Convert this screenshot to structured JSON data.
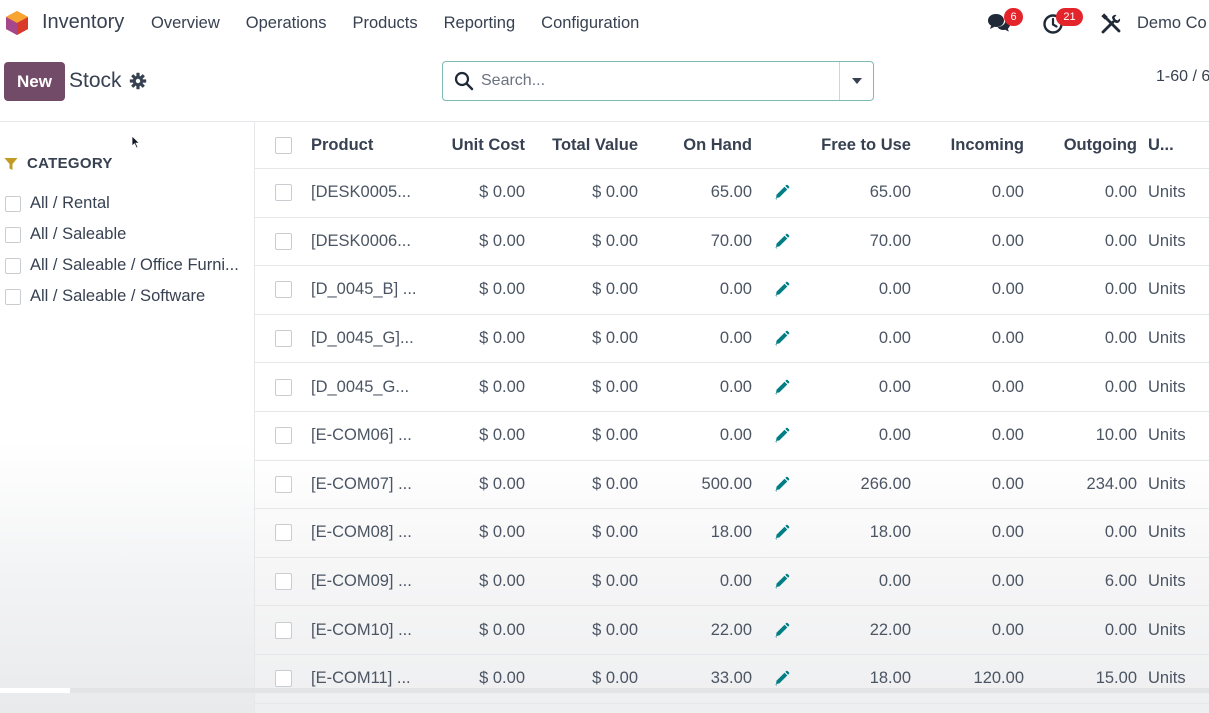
{
  "navbar": {
    "app_name": "Inventory",
    "menu": [
      "Overview",
      "Operations",
      "Products",
      "Reporting",
      "Configuration"
    ],
    "messages_count": "6",
    "activities_count": "21",
    "company": "Demo Co"
  },
  "control_panel": {
    "new_label": "New",
    "breadcrumb": "Stock",
    "search_placeholder": "Search...",
    "pager": "1-60 / 6"
  },
  "sidepanel": {
    "title": "CATEGORY",
    "items": [
      {
        "label": "All / Rental"
      },
      {
        "label": "All / Saleable"
      },
      {
        "label": "All / Saleable / Office Furni..."
      },
      {
        "label": "All / Saleable / Software"
      }
    ]
  },
  "table": {
    "headers": {
      "product": "Product",
      "unit_cost": "Unit Cost",
      "total_value": "Total Value",
      "on_hand": "On Hand",
      "free": "Free to Use",
      "incoming": "Incoming",
      "outgoing": "Outgoing",
      "uom": "U..."
    },
    "rows": [
      {
        "product": "[DESK0005...",
        "unit_cost": "$ 0.00",
        "total_value": "$ 0.00",
        "on_hand": "65.00",
        "free": "65.00",
        "incoming": "0.00",
        "outgoing": "0.00",
        "uom": "Units"
      },
      {
        "product": "[DESK0006...",
        "unit_cost": "$ 0.00",
        "total_value": "$ 0.00",
        "on_hand": "70.00",
        "free": "70.00",
        "incoming": "0.00",
        "outgoing": "0.00",
        "uom": "Units"
      },
      {
        "product": "[D_0045_B] ...",
        "unit_cost": "$ 0.00",
        "total_value": "$ 0.00",
        "on_hand": "0.00",
        "free": "0.00",
        "incoming": "0.00",
        "outgoing": "0.00",
        "uom": "Units"
      },
      {
        "product": "[D_0045_G]...",
        "unit_cost": "$ 0.00",
        "total_value": "$ 0.00",
        "on_hand": "0.00",
        "free": "0.00",
        "incoming": "0.00",
        "outgoing": "0.00",
        "uom": "Units"
      },
      {
        "product": "[D_0045_G...",
        "unit_cost": "$ 0.00",
        "total_value": "$ 0.00",
        "on_hand": "0.00",
        "free": "0.00",
        "incoming": "0.00",
        "outgoing": "0.00",
        "uom": "Units"
      },
      {
        "product": "[E-COM06] ...",
        "unit_cost": "$ 0.00",
        "total_value": "$ 0.00",
        "on_hand": "0.00",
        "free": "0.00",
        "incoming": "0.00",
        "outgoing": "10.00",
        "uom": "Units"
      },
      {
        "product": "[E-COM07] ...",
        "unit_cost": "$ 0.00",
        "total_value": "$ 0.00",
        "on_hand": "500.00",
        "free": "266.00",
        "incoming": "0.00",
        "outgoing": "234.00",
        "uom": "Units"
      },
      {
        "product": "[E-COM08] ...",
        "unit_cost": "$ 0.00",
        "total_value": "$ 0.00",
        "on_hand": "18.00",
        "free": "18.00",
        "incoming": "0.00",
        "outgoing": "0.00",
        "uom": "Units"
      },
      {
        "product": "[E-COM09] ...",
        "unit_cost": "$ 0.00",
        "total_value": "$ 0.00",
        "on_hand": "0.00",
        "free": "0.00",
        "incoming": "0.00",
        "outgoing": "6.00",
        "uom": "Units"
      },
      {
        "product": "[E-COM10] ...",
        "unit_cost": "$ 0.00",
        "total_value": "$ 0.00",
        "on_hand": "22.00",
        "free": "22.00",
        "incoming": "0.00",
        "outgoing": "0.00",
        "uom": "Units"
      },
      {
        "product": "[E-COM11] ...",
        "unit_cost": "$ 0.00",
        "total_value": "$ 0.00",
        "on_hand": "33.00",
        "free": "18.00",
        "incoming": "120.00",
        "outgoing": "15.00",
        "uom": "Units"
      }
    ]
  },
  "colors": {
    "brand": "#714b67",
    "accent": "#017e84",
    "badge": "#e3242b",
    "filter": "#c29c22"
  },
  "icons": {
    "logo": "odoo-app-logo-icon",
    "messages": "chat-bubbles-icon",
    "activities": "clock-icon",
    "debug": "tools-icon",
    "settings": "gear-icon",
    "search": "search-icon",
    "toggle": "caret-down-icon",
    "filter": "filter-funnel-icon",
    "edit": "pencil-icon"
  }
}
